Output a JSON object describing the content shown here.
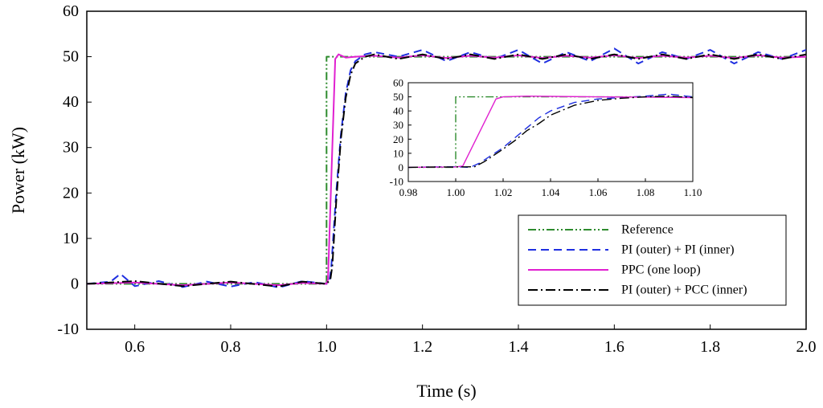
{
  "chart_data": [
    {
      "type": "line",
      "title": "",
      "xlabel": "Time (s)",
      "ylabel": "Power (kW)",
      "xlim": [
        0.5,
        2.0
      ],
      "ylim": [
        -10,
        60
      ],
      "x_ticks": [
        0.6,
        0.8,
        1.0,
        1.2,
        1.4,
        1.6,
        1.8,
        2.0
      ],
      "x_tick_labels": [
        "0.6",
        "0.8",
        "1.0",
        "1.2",
        "1.4",
        "1.6",
        "1.8",
        "2.0"
      ],
      "y_ticks": [
        -10,
        0,
        10,
        20,
        30,
        40,
        50,
        60
      ],
      "y_tick_labels": [
        "-10",
        "0",
        "10",
        "20",
        "30",
        "40",
        "50",
        "60"
      ],
      "grid": false,
      "legend_position": "bottom-right",
      "series": [
        {
          "name": "Reference",
          "color": "#2e8b2e",
          "dash": "dash-dot-dot",
          "x": [
            0.5,
            1.0,
            1.0,
            2.0
          ],
          "y": [
            0,
            0,
            50,
            50
          ]
        },
        {
          "name": "PI (outer) + PI (inner)",
          "color": "#1f2fe0",
          "dash": "dashed",
          "x": [
            0.5,
            0.55,
            0.57,
            0.6,
            0.65,
            0.7,
            0.75,
            0.8,
            0.85,
            0.9,
            0.95,
            1.0,
            1.006,
            1.01,
            1.02,
            1.03,
            1.04,
            1.05,
            1.06,
            1.08,
            1.1,
            1.15,
            1.2,
            1.25,
            1.3,
            1.35,
            1.4,
            1.45,
            1.5,
            1.55,
            1.6,
            1.65,
            1.7,
            1.75,
            1.8,
            1.85,
            1.9,
            1.95,
            2.0
          ],
          "y": [
            0,
            0.5,
            2.2,
            -0.5,
            0.6,
            -0.7,
            0.5,
            -0.6,
            0.4,
            -0.8,
            0.6,
            0,
            0.5,
            4,
            20,
            33,
            42,
            47,
            49,
            50.5,
            51,
            50,
            51.5,
            49,
            51,
            49.5,
            51.5,
            48.5,
            51,
            49,
            51.8,
            48.5,
            51,
            49.5,
            51.5,
            48.5,
            51,
            49.5,
            51.5
          ]
        },
        {
          "name": "PPC (one loop)",
          "color": "#e020d0",
          "dash": "solid",
          "x": [
            0.5,
            0.6,
            0.7,
            0.8,
            0.9,
            0.95,
            1.0,
            1.003,
            1.018,
            1.025,
            1.04,
            1.06,
            1.1,
            1.15,
            1.2,
            1.25,
            1.3,
            1.35,
            1.4,
            1.45,
            1.5,
            1.55,
            1.6,
            1.65,
            1.7,
            1.75,
            1.8,
            1.85,
            1.9,
            1.95,
            2.0
          ],
          "y": [
            0,
            0.3,
            -0.3,
            0.3,
            -0.3,
            0.2,
            0,
            1,
            49.5,
            50.5,
            49.8,
            50,
            50.2,
            49.8,
            50.3,
            49.7,
            50.2,
            49.8,
            50.3,
            49.7,
            50.2,
            49.8,
            50.3,
            49.7,
            50.2,
            49.8,
            50.2,
            49.7,
            50.3,
            49.8,
            50
          ]
        },
        {
          "name": "PI (outer) + PCC (inner)",
          "color": "#000000",
          "dash": "dash-dot",
          "x": [
            0.5,
            0.6,
            0.7,
            0.8,
            0.9,
            0.95,
            1.0,
            1.008,
            1.012,
            1.02,
            1.03,
            1.04,
            1.05,
            1.06,
            1.08,
            1.1,
            1.15,
            1.2,
            1.25,
            1.3,
            1.35,
            1.4,
            1.45,
            1.5,
            1.55,
            1.6,
            1.65,
            1.7,
            1.75,
            1.8,
            1.85,
            1.9,
            1.95,
            2.0
          ],
          "y": [
            0,
            0.6,
            -0.5,
            0.5,
            -0.6,
            0.5,
            0,
            1,
            4,
            18,
            32,
            41,
            46,
            48.5,
            50,
            50.5,
            49.5,
            50.5,
            49.5,
            50.5,
            49.5,
            50.5,
            49.5,
            50.5,
            49.5,
            50.5,
            49.5,
            50.5,
            49.5,
            50.5,
            49.5,
            50.5,
            49.5,
            50.5
          ]
        }
      ]
    },
    {
      "type": "line",
      "title": "",
      "xlabel": "",
      "ylabel": "",
      "xlim": [
        0.98,
        1.1
      ],
      "ylim": [
        -10,
        60
      ],
      "x_ticks": [
        0.98,
        1.0,
        1.02,
        1.04,
        1.06,
        1.08,
        1.1
      ],
      "x_tick_labels": [
        "0.98",
        "1.00",
        "1.02",
        "1.04",
        "1.06",
        "1.08",
        "1.10"
      ],
      "y_ticks": [
        -10,
        0,
        10,
        20,
        30,
        40,
        50,
        60
      ],
      "y_tick_labels": [
        "-10",
        "0",
        "10",
        "20",
        "30",
        "40",
        "50",
        "60"
      ],
      "grid": false,
      "series": [
        {
          "name": "Reference",
          "color": "#2e8b2e",
          "dash": "dash-dot-dot",
          "x": [
            0.98,
            1.0,
            1.0,
            1.1
          ],
          "y": [
            0,
            0,
            50,
            50
          ]
        },
        {
          "name": "PI (outer) + PI (inner)",
          "color": "#1f2fe0",
          "dash": "dashed",
          "x": [
            0.98,
            0.99,
            1.0,
            1.006,
            1.01,
            1.02,
            1.025,
            1.03,
            1.035,
            1.04,
            1.05,
            1.06,
            1.07,
            1.08,
            1.09,
            1.1
          ],
          "y": [
            0,
            0.3,
            0.5,
            0,
            3,
            14,
            21,
            28,
            35,
            40,
            46,
            48.5,
            49.5,
            50.5,
            52,
            50
          ]
        },
        {
          "name": "PPC (one loop)",
          "color": "#e020d0",
          "dash": "solid",
          "x": [
            0.98,
            0.99,
            1.0,
            1.003,
            1.017,
            1.02,
            1.03,
            1.04,
            1.06,
            1.08,
            1.1
          ],
          "y": [
            0,
            0.2,
            0.3,
            1,
            48.5,
            50,
            50.5,
            50.3,
            50,
            49.8,
            49.5
          ]
        },
        {
          "name": "PI (outer) + PCC (inner)",
          "color": "#000000",
          "dash": "dash-dot",
          "x": [
            0.98,
            0.99,
            1.0,
            1.008,
            1.012,
            1.02,
            1.025,
            1.03,
            1.035,
            1.04,
            1.05,
            1.06,
            1.07,
            1.08,
            1.09,
            1.1
          ],
          "y": [
            0,
            0.3,
            0.3,
            0.5,
            4,
            13,
            19,
            26,
            31,
            37,
            44,
            47.5,
            49,
            50,
            50.5,
            49.5
          ]
        }
      ]
    }
  ]
}
